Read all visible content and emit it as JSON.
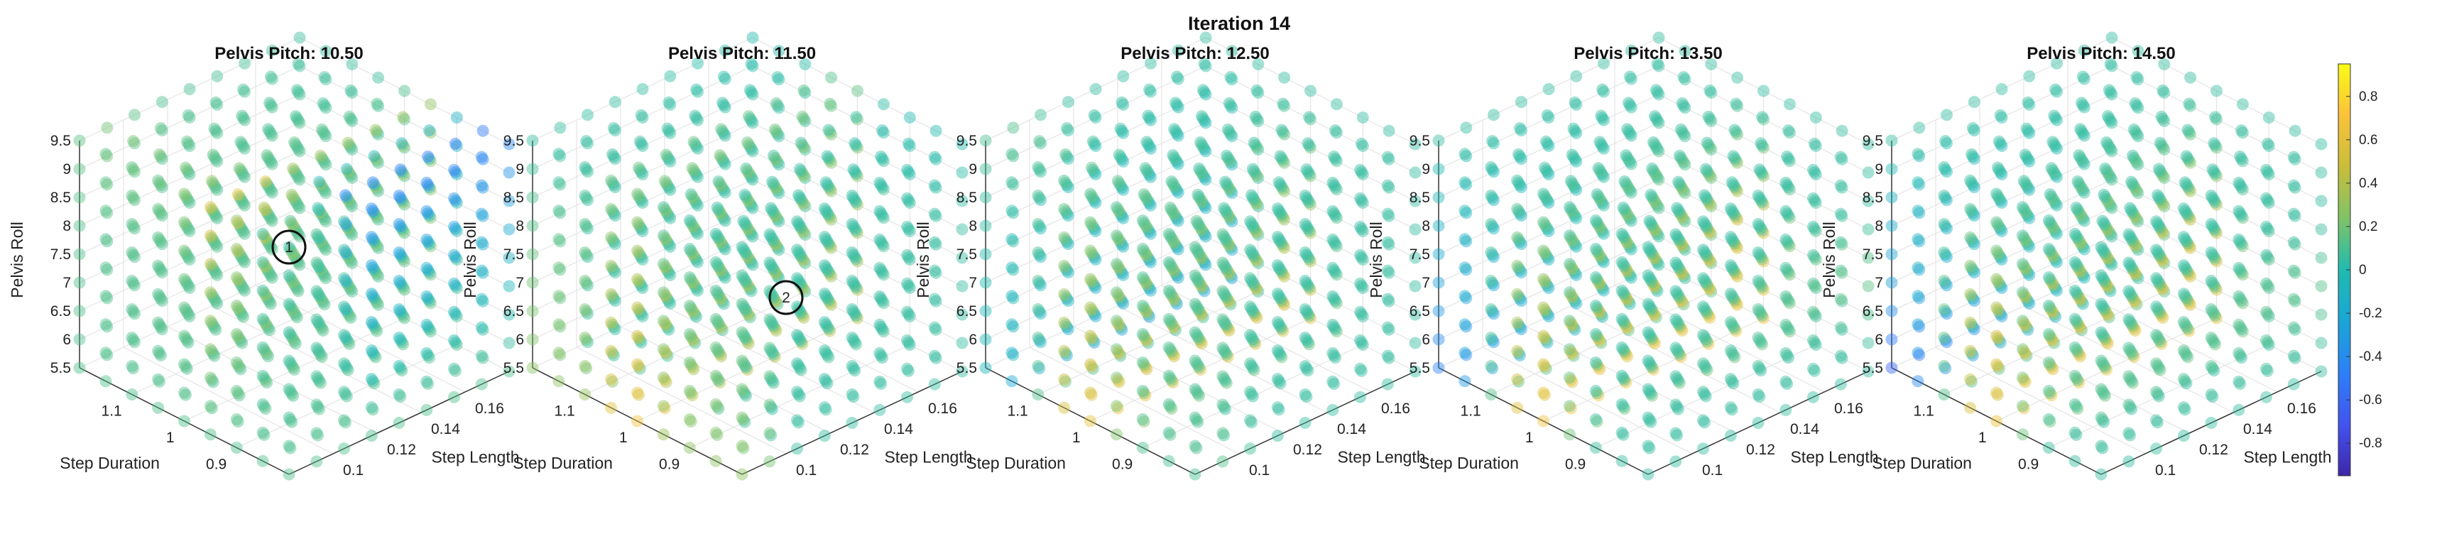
{
  "figure": {
    "title": "Iteration 14"
  },
  "colorbar": {
    "min": -0.95,
    "max": 0.95,
    "ticks": [
      0.8,
      0.6,
      0.4,
      0.2,
      0,
      -0.2,
      -0.4,
      -0.6,
      -0.8
    ]
  },
  "chart_data": [
    {
      "type": "scatter3d",
      "title": "Pelvis Pitch: 10.50",
      "pitch": 10.5,
      "xlabel": "Step Length",
      "ylabel": "Step Duration",
      "zlabel": "Pelvis Roll",
      "xticks": [
        0.1,
        0.12,
        0.14,
        0.16
      ],
      "yticks": [
        0.9,
        1,
        1.1
      ],
      "zticks": [
        5.5,
        6,
        6.5,
        7,
        7.5,
        8,
        8.5,
        9,
        9.5
      ],
      "xlim": [
        0.08,
        0.18
      ],
      "ylim": [
        0.8,
        1.2
      ],
      "zlim": [
        5.5,
        9.5
      ],
      "annotations": [
        {
          "label": "1",
          "x": 0.08,
          "y": 0.8,
          "z": 9.5
        }
      ]
    },
    {
      "type": "scatter3d",
      "title": "Pelvis Pitch: 11.50",
      "pitch": 11.5,
      "xlabel": "Step Length",
      "ylabel": "Step Duration",
      "zlabel": "Pelvis Roll",
      "xticks": [
        0.1,
        0.12,
        0.14,
        0.16
      ],
      "yticks": [
        0.9,
        1,
        1.1
      ],
      "zticks": [
        5.5,
        6,
        6.5,
        7,
        7.5,
        8,
        8.5,
        9,
        9.5
      ],
      "xlim": [
        0.08,
        0.18
      ],
      "ylim": [
        0.8,
        1.2
      ],
      "zlim": [
        5.5,
        9.5
      ],
      "annotations": [
        {
          "label": "2",
          "x": 0.1,
          "y": 0.8,
          "z": 8.25
        }
      ]
    },
    {
      "type": "scatter3d",
      "title": "Pelvis Pitch: 12.50",
      "pitch": 12.5,
      "xlabel": "Step Length",
      "ylabel": "Step Duration",
      "zlabel": "Pelvis Roll",
      "xticks": [
        0.1,
        0.12,
        0.14,
        0.16
      ],
      "yticks": [
        0.9,
        1,
        1.1
      ],
      "zticks": [
        5.5,
        6,
        6.5,
        7,
        7.5,
        8,
        8.5,
        9,
        9.5
      ],
      "xlim": [
        0.08,
        0.18
      ],
      "ylim": [
        0.8,
        1.2
      ],
      "zlim": [
        5.5,
        9.5
      ],
      "annotations": []
    },
    {
      "type": "scatter3d",
      "title": "Pelvis Pitch: 13.50",
      "pitch": 13.5,
      "xlabel": "Step Length",
      "ylabel": "Step Duration",
      "zlabel": "Pelvis Roll",
      "xticks": [
        0.1,
        0.12,
        0.14,
        0.16
      ],
      "yticks": [
        0.9,
        1,
        1.1
      ],
      "zticks": [
        5.5,
        6,
        6.5,
        7,
        7.5,
        8,
        8.5,
        9,
        9.5
      ],
      "xlim": [
        0.08,
        0.18
      ],
      "ylim": [
        0.8,
        1.2
      ],
      "zlim": [
        5.5,
        9.5
      ],
      "annotations": []
    },
    {
      "type": "scatter3d",
      "title": "Pelvis Pitch: 14.50",
      "pitch": 14.5,
      "xlabel": "Step Length",
      "ylabel": "Step Duration",
      "zlabel": "Pelvis Roll",
      "xticks": [
        0.1,
        0.12,
        0.14,
        0.16
      ],
      "yticks": [
        0.9,
        1,
        1.1
      ],
      "zticks": [
        5.5,
        6,
        6.5,
        7,
        7.5,
        8,
        8.5,
        9,
        9.5
      ],
      "xlim": [
        0.08,
        0.18
      ],
      "ylim": [
        0.8,
        1.2
      ],
      "zlim": [
        5.5,
        9.5
      ],
      "annotations": []
    }
  ]
}
